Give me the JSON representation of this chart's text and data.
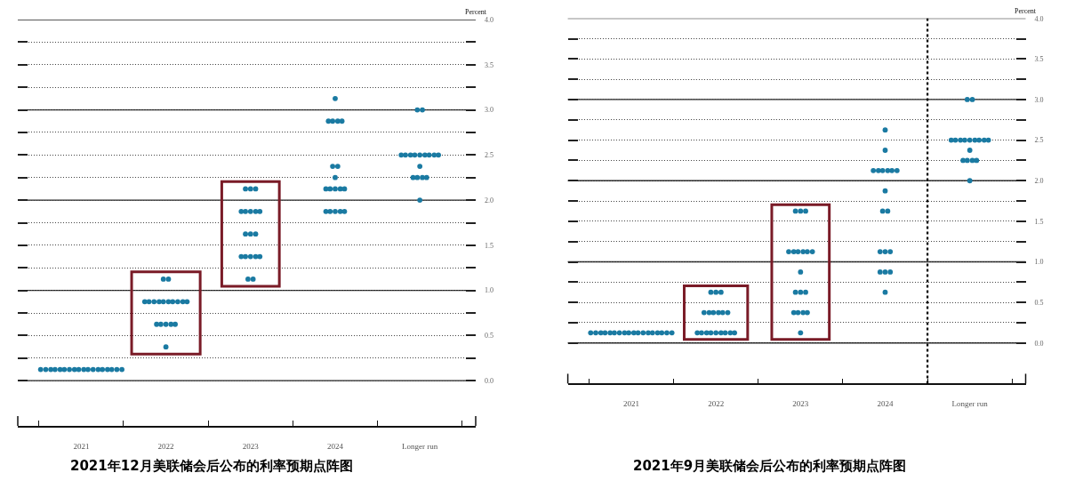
{
  "chart_data": [
    {
      "type": "scatter",
      "title": "2021年12月美联储会后公布的利率预期点阵图",
      "ylabel": "Percent",
      "xlim": [
        2020.25,
        2025.66
      ],
      "xticks": [
        {
          "value": 2020.5,
          "label": null
        },
        2021,
        {
          "value": 2021.5,
          "label": null
        },
        2022,
        {
          "value": 2022.5,
          "label": null
        },
        2023,
        {
          "value": 2023.5,
          "label": null
        },
        2024,
        {
          "value": 2024.5,
          "label": null
        },
        {
          "value": 2025,
          "label": "Longer run"
        },
        {
          "value": 2025.5,
          "label": null
        }
      ],
      "ylim": [
        -0.5,
        4.0
      ],
      "yticks": [
        {
          "value": 0,
          "label": "0.0"
        },
        {
          "value": 0.25,
          "label": null
        },
        {
          "value": 0.5,
          "label": "0.5"
        },
        {
          "value": 0.75,
          "label": null
        },
        {
          "value": 1,
          "label": "1.0"
        },
        {
          "value": 1.25,
          "label": null
        },
        {
          "value": 1.5,
          "label": "1.5"
        },
        {
          "value": 1.75,
          "label": null
        },
        {
          "value": 2,
          "label": "2.0"
        },
        {
          "value": 2.25,
          "label": null
        },
        {
          "value": 2.5,
          "label": "2.5"
        },
        {
          "value": 2.75,
          "label": null
        },
        {
          "value": 3,
          "label": "3.0"
        },
        {
          "value": 3.25,
          "label": null
        },
        {
          "value": 3.5,
          "label": "3.5"
        },
        {
          "value": 3.75,
          "label": null
        },
        {
          "value": 4,
          "label": "4.0"
        }
      ],
      "grid": "y",
      "marker": "circle",
      "series": [
        {
          "color": "#1a7aa2",
          "x": [
            2020.52,
            2020.58,
            2020.64,
            2020.69,
            2020.75,
            2020.8,
            2020.86,
            2020.92,
            2020.97,
            2021.03,
            2021.08,
            2021.14,
            2021.2,
            2021.25,
            2021.31,
            2021.36,
            2021.42,
            2021.48
          ],
          "values": [
            0.125,
            0.125,
            0.125,
            0.125,
            0.125,
            0.125,
            0.125,
            0.125,
            0.125,
            0.125,
            0.125,
            0.125,
            0.125,
            0.125,
            0.125,
            0.125,
            0.125,
            0.125
          ]
        },
        {
          "color": "#1a7aa2",
          "x": [
            2021.97,
            2022.03,
            2021.75,
            2021.8,
            2021.86,
            2021.92,
            2021.97,
            2022.03,
            2022.08,
            2022.14,
            2022.2,
            2022.25,
            2021.89,
            2021.94,
            2022,
            2022.06,
            2022.11,
            2022
          ],
          "values": [
            1.125,
            1.125,
            0.875,
            0.875,
            0.875,
            0.875,
            0.875,
            0.875,
            0.875,
            0.875,
            0.875,
            0.875,
            0.625,
            0.625,
            0.625,
            0.625,
            0.625,
            0.375
          ]
        },
        {
          "color": "#1a7aa2",
          "x": [
            2022.94,
            2023,
            2023.06,
            2022.89,
            2022.94,
            2023,
            2023.06,
            2023.11,
            2022.94,
            2023,
            2023.06,
            2022.89,
            2022.94,
            2023,
            2023.06,
            2023.11,
            2022.97,
            2023.03
          ],
          "values": [
            2.125,
            2.125,
            2.125,
            1.875,
            1.875,
            1.875,
            1.875,
            1.875,
            1.625,
            1.625,
            1.625,
            1.375,
            1.375,
            1.375,
            1.375,
            1.375,
            1.125,
            1.125
          ]
        },
        {
          "color": "#1a7aa2",
          "x": [
            2024,
            2023.92,
            2023.97,
            2024.03,
            2024.08,
            2023.97,
            2024.03,
            2024,
            2023.89,
            2023.94,
            2024,
            2024.06,
            2024.11,
            2023.89,
            2023.94,
            2024,
            2024.06,
            2024.11
          ],
          "values": [
            3.125,
            2.875,
            2.875,
            2.875,
            2.875,
            2.375,
            2.375,
            2.25,
            2.125,
            2.125,
            2.125,
            2.125,
            2.125,
            1.875,
            1.875,
            1.875,
            1.875,
            1.875
          ]
        },
        {
          "color": "#1a7aa2",
          "x": [
            2024.97,
            2025.03,
            2024.78,
            2024.83,
            2024.89,
            2024.94,
            2025,
            2025.06,
            2025.11,
            2025.17,
            2025.22,
            2025,
            2024.92,
            2024.97,
            2025.03,
            2025.08,
            2025
          ],
          "values": [
            3.0,
            3.0,
            2.5,
            2.5,
            2.5,
            2.5,
            2.5,
            2.5,
            2.5,
            2.5,
            2.5,
            2.375,
            2.25,
            2.25,
            2.25,
            2.25,
            2.0
          ]
        }
      ]
    },
    {
      "type": "scatter",
      "title": "2021年9月美联储会后公布的利率预期点阵图",
      "ylabel": "Percent",
      "xlim": [
        2020.25,
        2025.66
      ],
      "xticks": [
        {
          "value": 2020.5,
          "label": null
        },
        2021,
        {
          "value": 2021.5,
          "label": null
        },
        2022,
        {
          "value": 2022.5,
          "label": null
        },
        2023,
        {
          "value": 2023.5,
          "label": null
        },
        2024,
        {
          "value": 2024.5,
          "label": null
        },
        {
          "value": 2025,
          "label": "Longer run"
        },
        {
          "value": 2025.5,
          "label": null
        }
      ],
      "ylim": [
        -0.5,
        4.0
      ],
      "yticks": [
        {
          "value": 0,
          "label": "0.0"
        },
        {
          "value": 0.25,
          "label": null
        },
        {
          "value": 0.5,
          "label": "0.5"
        },
        {
          "value": 0.75,
          "label": null
        },
        {
          "value": 1,
          "label": "1.0"
        },
        {
          "value": 1.25,
          "label": null
        },
        {
          "value": 1.5,
          "label": "1.5"
        },
        {
          "value": 1.75,
          "label": null
        },
        {
          "value": 2,
          "label": "2.0"
        },
        {
          "value": 2.25,
          "label": null
        },
        {
          "value": 2.5,
          "label": "2.5"
        },
        {
          "value": 2.75,
          "label": null
        },
        {
          "value": 3,
          "label": "3.0"
        },
        {
          "value": 3.25,
          "label": null
        },
        {
          "value": 3.5,
          "label": "3.5"
        },
        {
          "value": 3.75,
          "label": null
        },
        {
          "value": 4,
          "label": "4.0"
        }
      ],
      "grid": "y",
      "marker": "circle",
      "ref_lines": [
        {
          "axis": "x",
          "value": 2024.5,
          "line_style": "dotted",
          "color": "#000000"
        }
      ],
      "series": [
        {
          "color": "#1a7aa2",
          "x": [
            2020.52,
            2020.58,
            2020.64,
            2020.69,
            2020.75,
            2020.8,
            2020.86,
            2020.92,
            2020.97,
            2021.03,
            2021.08,
            2021.14,
            2021.2,
            2021.25,
            2021.31,
            2021.36,
            2021.42,
            2021.48
          ],
          "values": [
            0.125,
            0.125,
            0.125,
            0.125,
            0.125,
            0.125,
            0.125,
            0.125,
            0.125,
            0.125,
            0.125,
            0.125,
            0.125,
            0.125,
            0.125,
            0.125,
            0.125,
            0.125
          ]
        },
        {
          "color": "#1a7aa2",
          "x": [
            2021.94,
            2022,
            2022.06,
            2021.86,
            2021.92,
            2021.97,
            2022.03,
            2022.08,
            2022.14,
            2021.78,
            2021.83,
            2021.89,
            2021.94,
            2022,
            2022.06,
            2022.11,
            2022.17,
            2022.22
          ],
          "values": [
            0.625,
            0.625,
            0.625,
            0.375,
            0.375,
            0.375,
            0.375,
            0.375,
            0.375,
            0.125,
            0.125,
            0.125,
            0.125,
            0.125,
            0.125,
            0.125,
            0.125,
            0.125
          ]
        },
        {
          "color": "#1a7aa2",
          "x": [
            2022.94,
            2023,
            2023.06,
            2022.86,
            2022.92,
            2022.97,
            2023.03,
            2023.08,
            2023.14,
            2023,
            2022.94,
            2023,
            2023.06,
            2022.92,
            2022.97,
            2023.03,
            2023.08,
            2023
          ],
          "values": [
            1.625,
            1.625,
            1.625,
            1.125,
            1.125,
            1.125,
            1.125,
            1.125,
            1.125,
            0.875,
            0.625,
            0.625,
            0.625,
            0.375,
            0.375,
            0.375,
            0.375,
            0.125
          ]
        },
        {
          "color": "#1a7aa2",
          "x": [
            2024,
            2024,
            2023.86,
            2023.92,
            2023.97,
            2024.03,
            2024.08,
            2024.14,
            2024,
            2023.97,
            2024.03,
            2023.94,
            2024,
            2024.06,
            2023.94,
            2024,
            2024.06,
            2024
          ],
          "values": [
            2.625,
            2.375,
            2.125,
            2.125,
            2.125,
            2.125,
            2.125,
            2.125,
            1.875,
            1.625,
            1.625,
            1.125,
            1.125,
            1.125,
            0.875,
            0.875,
            0.875,
            0.625
          ]
        },
        {
          "color": "#1a7aa2",
          "x": [
            2024.97,
            2025.03,
            2024.78,
            2024.83,
            2024.89,
            2024.94,
            2025,
            2025.06,
            2025.11,
            2025.17,
            2025.22,
            2025,
            2024.92,
            2024.97,
            2025.03,
            2025.08,
            2025
          ],
          "values": [
            3.0,
            3.0,
            2.5,
            2.5,
            2.5,
            2.5,
            2.5,
            2.5,
            2.5,
            2.5,
            2.5,
            2.375,
            2.25,
            2.25,
            2.25,
            2.25,
            2.0
          ]
        }
      ]
    }
  ]
}
